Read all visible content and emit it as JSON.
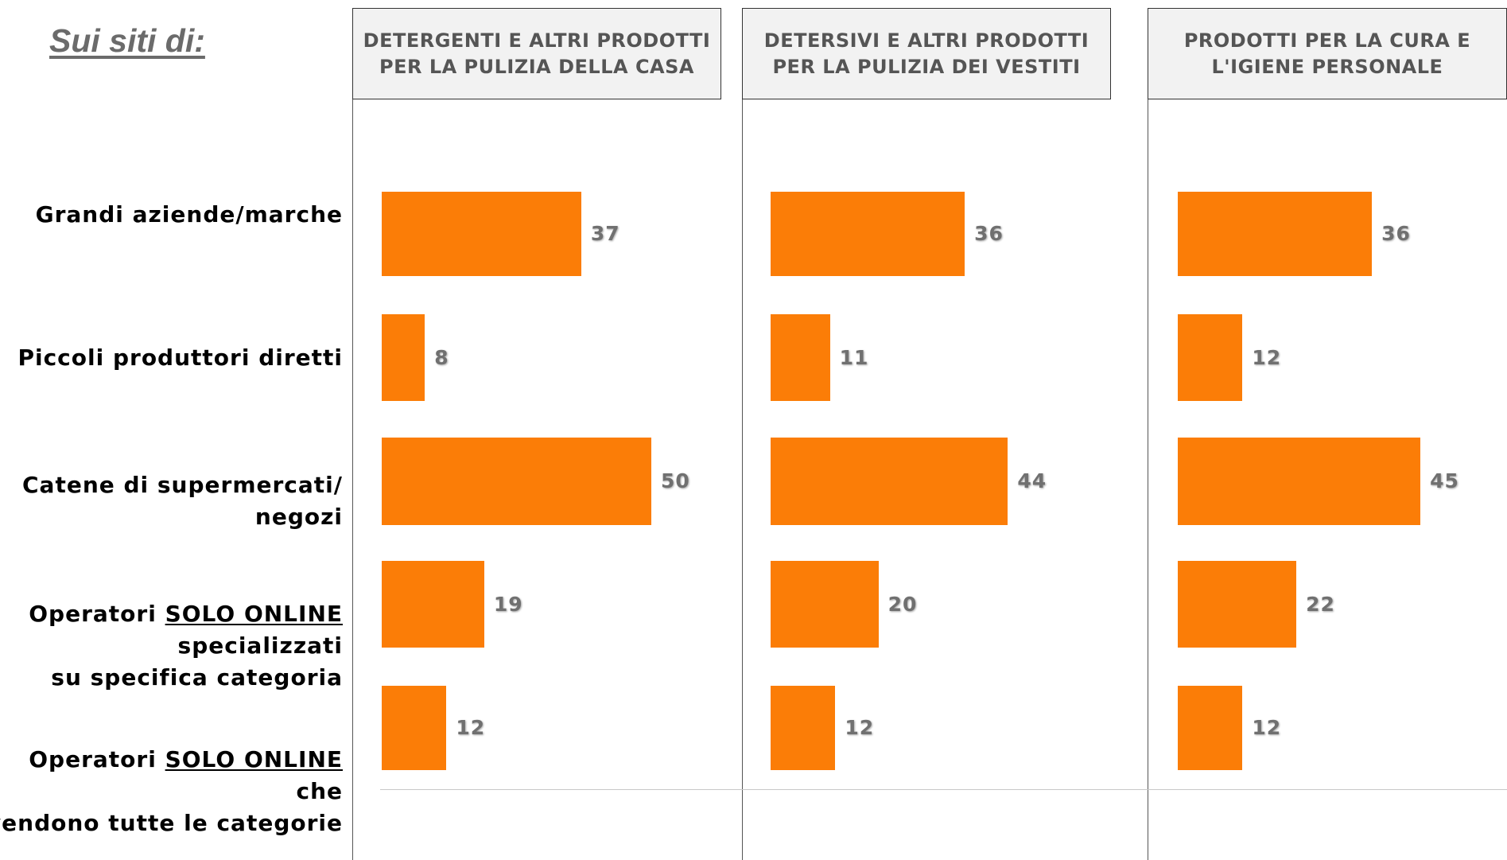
{
  "heading": "Sui siti di:",
  "colors": {
    "bar": "#fb7d07",
    "value_text": "#707070"
  },
  "rows": [
    {
      "lines": [
        [
          {
            "t": "Grandi aziende/marche"
          }
        ]
      ]
    },
    {
      "lines": [
        [
          {
            "t": "Piccoli produttori diretti"
          }
        ]
      ]
    },
    {
      "lines": [
        [
          {
            "t": "Catene di supermercati/"
          }
        ],
        [
          {
            "t": "negozi"
          }
        ]
      ]
    },
    {
      "lines": [
        [
          {
            "t": "Operatori "
          },
          {
            "t": "SOLO ONLINE",
            "u": true
          }
        ],
        [
          {
            "t": "specializzati"
          }
        ],
        [
          {
            "t": "su specifica categoria"
          }
        ]
      ]
    },
    {
      "lines": [
        [
          {
            "t": "Operatori "
          },
          {
            "t": "SOLO ONLINE",
            "u": true
          }
        ],
        [
          {
            "t": "che"
          }
        ],
        [
          {
            "t": "vendono tutte le categorie"
          }
        ]
      ]
    }
  ],
  "chart_data": [
    {
      "type": "bar",
      "orientation": "horizontal",
      "title": [
        "DETERGENTI E ALTRI PRODOTTI",
        "PER LA PULIZIA DELLA CASA"
      ],
      "categories": [
        "Grandi aziende/marche",
        "Piccoli produttori diretti",
        "Catene di supermercati/negozi",
        "Operatori SOLO ONLINE specializzati su specifica categoria",
        "Operatori SOLO ONLINE che vendono tutte le categorie"
      ],
      "values": [
        37,
        8,
        50,
        19,
        12
      ]
    },
    {
      "type": "bar",
      "orientation": "horizontal",
      "title": [
        "DETERSIVI E ALTRI PRODOTTI",
        "PER LA PULIZIA DEI VESTITI"
      ],
      "categories": [
        "Grandi aziende/marche",
        "Piccoli produttori diretti",
        "Catene di supermercati/negozi",
        "Operatori SOLO ONLINE specializzati su specifica categoria",
        "Operatori SOLO ONLINE che vendono tutte le categorie"
      ],
      "values": [
        36,
        11,
        44,
        20,
        12
      ]
    },
    {
      "type": "bar",
      "orientation": "horizontal",
      "title": [
        "PRODOTTI PER LA CURA E",
        "L'IGIENE PERSONALE"
      ],
      "categories": [
        "Grandi aziende/marche",
        "Piccoli produttori diretti",
        "Catene di supermercati/negozi",
        "Operatori SOLO ONLINE specializzati su specifica categoria",
        "Operatori SOLO ONLINE che vendono tutte le categorie"
      ],
      "values": [
        36,
        12,
        45,
        22,
        12
      ]
    }
  ]
}
